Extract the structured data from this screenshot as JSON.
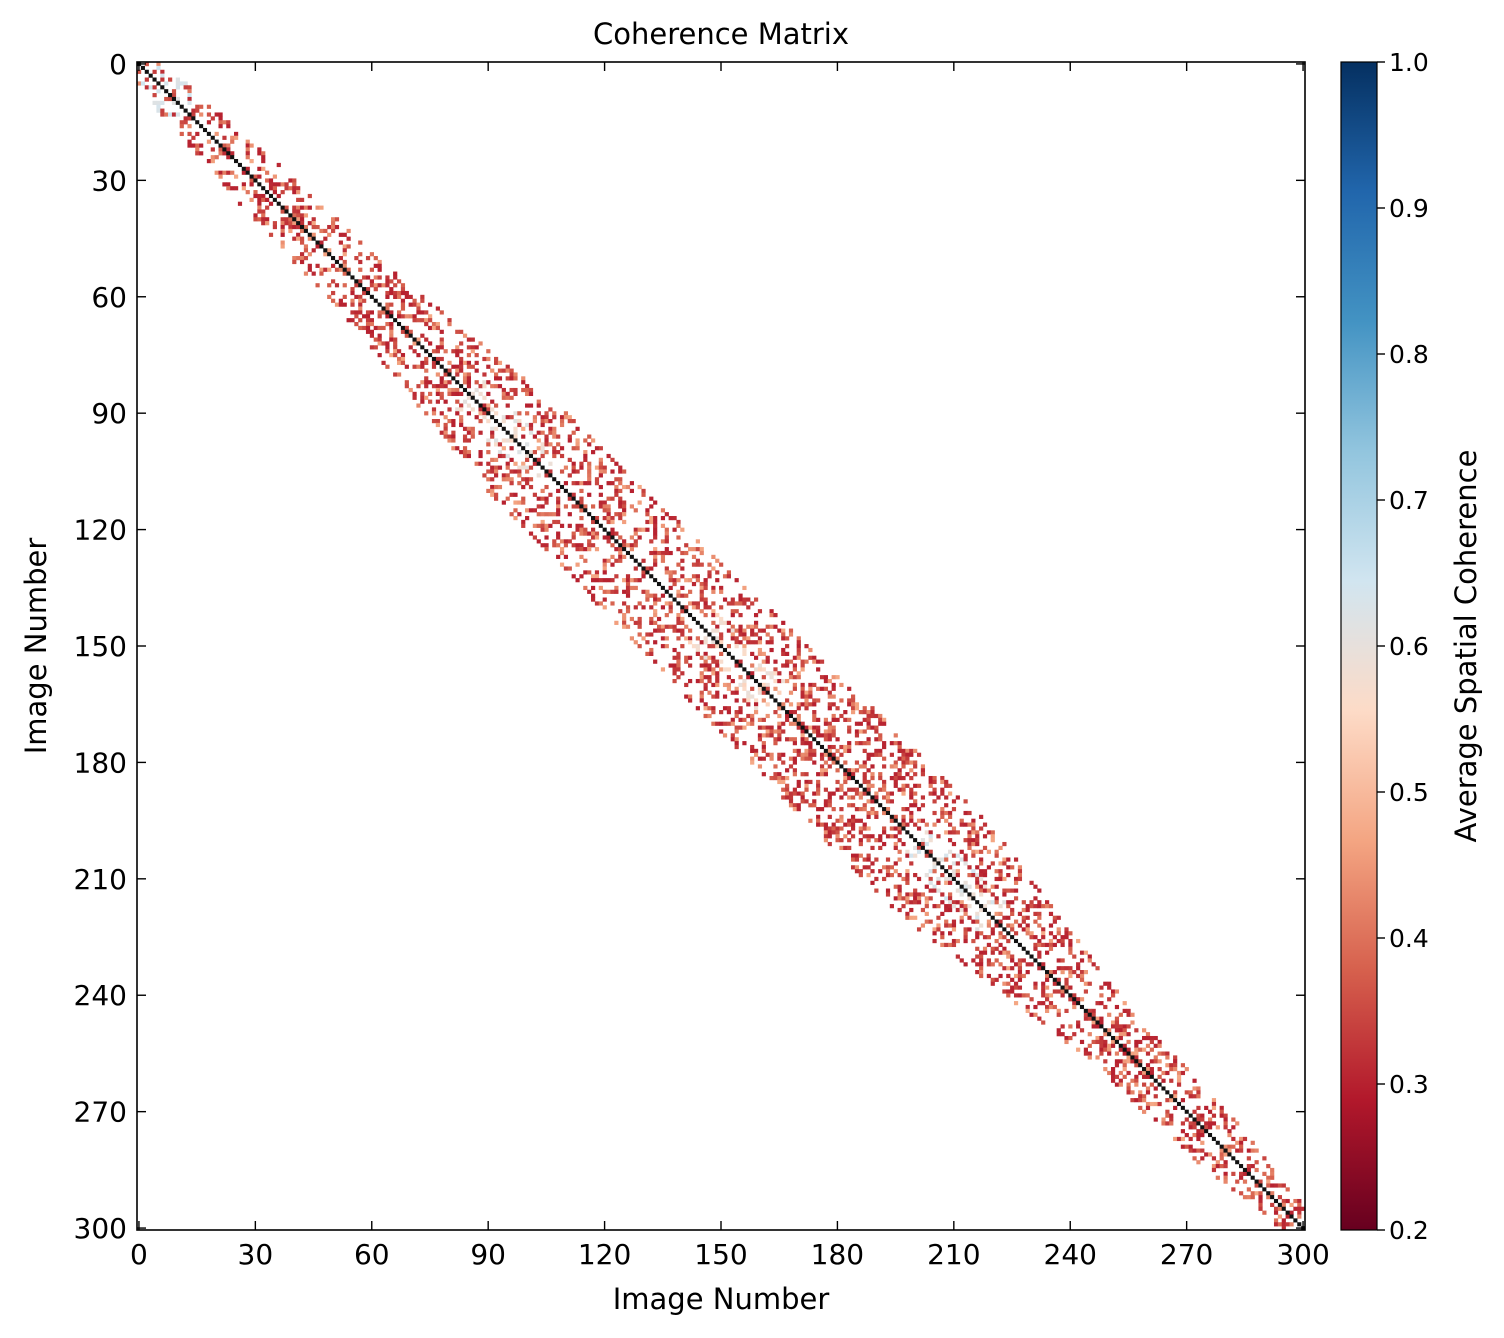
{
  "chart_data": {
    "type": "heatmap",
    "title": "Coherence Matrix",
    "xlabel": "Image Number",
    "ylabel": "Image Number",
    "xlim": [
      0,
      301
    ],
    "ylim": [
      301,
      0
    ],
    "y_inverted": true,
    "x_ticks": [
      0,
      30,
      60,
      90,
      120,
      150,
      180,
      210,
      240,
      270,
      300
    ],
    "y_ticks": [
      0,
      30,
      60,
      90,
      120,
      150,
      180,
      210,
      240,
      270,
      300
    ],
    "grid": false,
    "matrix_size": 301,
    "diagonal_value": 1.0,
    "colorbar": {
      "label": "Average Spatial Coherence",
      "range": [
        0.2,
        1.0
      ],
      "ticks": [
        0.2,
        0.3,
        0.4,
        0.5,
        0.6,
        0.7,
        0.8,
        0.9,
        1.0
      ],
      "tick_labels": [
        "0.2",
        "0.3",
        "0.4",
        "0.5",
        "0.6",
        "0.7",
        "0.8",
        "0.9",
        "1.0"
      ],
      "cmap": "RdBu",
      "colors": [
        "#67001f",
        "#b2182b",
        "#d6604d",
        "#f4a582",
        "#fddbc7",
        "#d1e5f0",
        "#92c5de",
        "#4393c3",
        "#2166ac",
        "#053061"
      ]
    },
    "band_half_width_by_image": [
      {
        "image": 0,
        "half_width": 6
      },
      {
        "image": 30,
        "half_width": 10
      },
      {
        "image": 60,
        "half_width": 12
      },
      {
        "image": 100,
        "half_width": 20
      },
      {
        "image": 150,
        "half_width": 22
      },
      {
        "image": 205,
        "half_width": 24
      },
      {
        "image": 250,
        "half_width": 12
      },
      {
        "image": 280,
        "half_width": 10
      },
      {
        "image": 300,
        "half_width": 5
      }
    ],
    "pair_density": 0.33,
    "value_distribution": {
      "min": 0.3,
      "max": 0.68,
      "typical": 0.38
    },
    "high_coherence_clusters": [
      {
        "center": 3,
        "value": 0.66
      },
      {
        "center": 95,
        "value": 0.62
      },
      {
        "center": 155,
        "value": 0.6
      },
      {
        "center": 210,
        "value": 0.64
      }
    ]
  }
}
